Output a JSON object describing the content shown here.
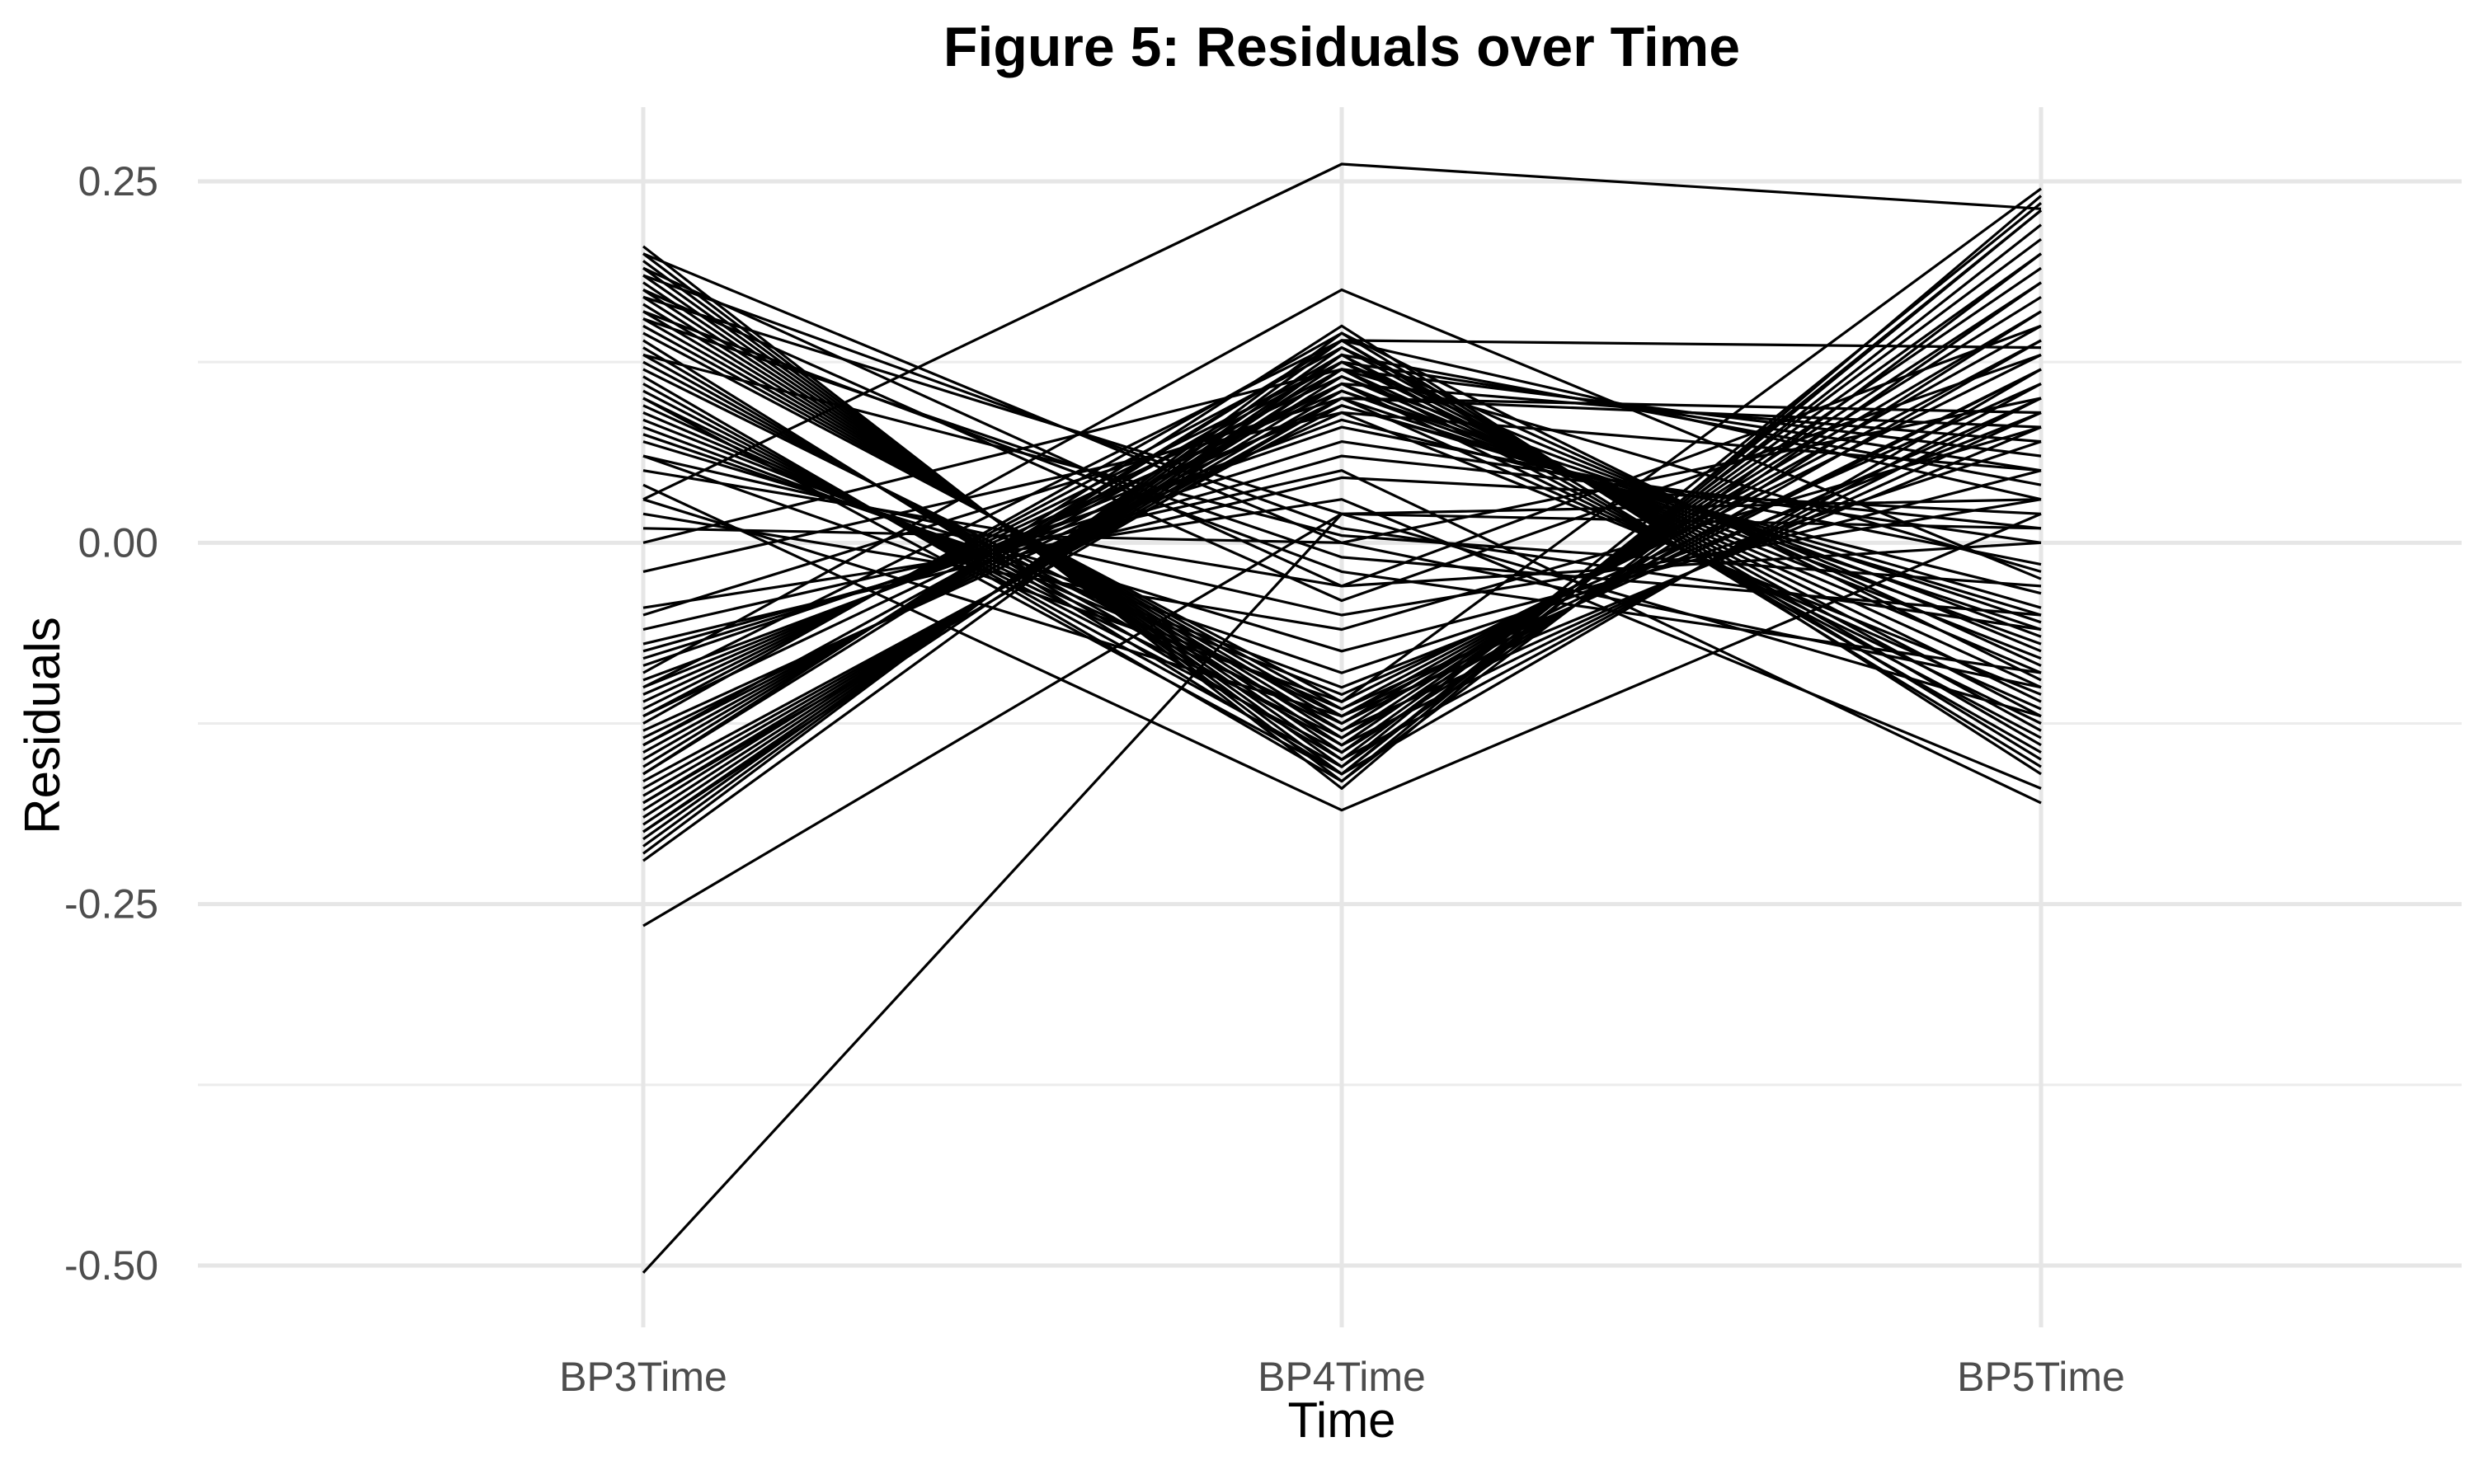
{
  "chart_data": {
    "type": "line",
    "title": "Figure 5: Residuals over Time",
    "xlabel": "Time",
    "ylabel": "Residuals",
    "categories": [
      "BP3Time",
      "BP4Time",
      "BP5Time"
    ],
    "ylim": [
      -0.54,
      0.31
    ],
    "yticks": [
      -0.5,
      -0.25,
      0.0,
      0.25
    ],
    "ytick_labels": [
      "-0.50",
      "-0.25",
      "0.00",
      "0.25"
    ],
    "grid": true,
    "legend": "none",
    "line_color": "#000000",
    "series": [
      {
        "values": [
          -0.505,
          0.02,
          0.01
        ]
      },
      {
        "values": [
          0.03,
          0.262,
          0.231
        ]
      },
      {
        "values": [
          -0.265,
          0.02,
          0.03
        ]
      },
      {
        "values": [
          0.205,
          -0.17,
          0.24
        ]
      },
      {
        "values": [
          0.2,
          -0.165,
          0.23
        ]
      },
      {
        "values": [
          0.195,
          -0.16,
          0.22
        ]
      },
      {
        "values": [
          0.19,
          -0.155,
          0.235
        ]
      },
      {
        "values": [
          0.185,
          -0.15,
          0.21
        ]
      },
      {
        "values": [
          0.18,
          -0.145,
          0.2
        ]
      },
      {
        "values": [
          0.175,
          -0.14,
          0.19
        ]
      },
      {
        "values": [
          0.17,
          -0.135,
          0.18
        ]
      },
      {
        "values": [
          0.165,
          -0.13,
          0.17
        ]
      },
      {
        "values": [
          0.16,
          -0.125,
          0.16
        ]
      },
      {
        "values": [
          0.155,
          -0.12,
          0.15
        ]
      },
      {
        "values": [
          0.15,
          -0.115,
          0.14
        ]
      },
      {
        "values": [
          0.145,
          -0.11,
          0.13
        ]
      },
      {
        "values": [
          0.14,
          -0.16,
          0.12
        ]
      },
      {
        "values": [
          0.135,
          -0.15,
          0.11
        ]
      },
      {
        "values": [
          0.13,
          -0.14,
          0.1
        ]
      },
      {
        "values": [
          0.125,
          -0.13,
          0.09
        ]
      },
      {
        "values": [
          0.12,
          -0.12,
          0.08
        ]
      },
      {
        "values": [
          0.115,
          -0.165,
          0.2
        ]
      },
      {
        "values": [
          0.11,
          -0.155,
          0.18
        ]
      },
      {
        "values": [
          0.105,
          -0.145,
          0.16
        ]
      },
      {
        "values": [
          0.1,
          -0.135,
          0.14
        ]
      },
      {
        "values": [
          0.095,
          -0.125,
          0.12
        ]
      },
      {
        "values": [
          0.09,
          -0.115,
          0.1
        ]
      },
      {
        "values": [
          0.085,
          -0.105,
          0.11
        ]
      },
      {
        "values": [
          0.08,
          -0.1,
          0.09
        ]
      },
      {
        "values": [
          0.075,
          -0.09,
          0.07
        ]
      },
      {
        "values": [
          0.07,
          -0.075,
          0.05
        ]
      },
      {
        "values": [
          0.06,
          -0.05,
          0.03
        ]
      },
      {
        "values": [
          0.05,
          -0.03,
          0.0
        ]
      },
      {
        "values": [
          0.04,
          -0.185,
          0.02
        ]
      },
      {
        "values": [
          0.03,
          -0.12,
          0.12
        ]
      },
      {
        "values": [
          0.02,
          -0.06,
          0.08
        ]
      },
      {
        "values": [
          0.01,
          0.0,
          0.1
        ]
      },
      {
        "values": [
          0.19,
          -0.03,
          0.15
        ]
      },
      {
        "values": [
          0.175,
          -0.04,
          0.13
        ]
      },
      {
        "values": [
          0.2,
          0.0,
          -0.1
        ]
      },
      {
        "values": [
          0.16,
          -0.02,
          -0.09
        ]
      },
      {
        "values": [
          0.185,
          0.01,
          -0.06
        ]
      },
      {
        "values": [
          0.17,
          0.02,
          -0.12
        ]
      },
      {
        "values": [
          0.155,
          -0.01,
          -0.05
        ]
      },
      {
        "values": [
          0.13,
          0.005,
          -0.03
        ]
      },
      {
        "values": [
          -0.215,
          0.145,
          -0.15
        ]
      },
      {
        "values": [
          -0.21,
          0.14,
          -0.14
        ]
      },
      {
        "values": [
          -0.205,
          0.135,
          -0.13
        ]
      },
      {
        "values": [
          -0.2,
          0.13,
          -0.12
        ]
      },
      {
        "values": [
          -0.195,
          0.125,
          -0.11
        ]
      },
      {
        "values": [
          -0.19,
          0.12,
          -0.1
        ]
      },
      {
        "values": [
          -0.185,
          0.115,
          -0.09
        ]
      },
      {
        "values": [
          -0.18,
          0.11,
          -0.08
        ]
      },
      {
        "values": [
          -0.175,
          0.105,
          -0.07
        ]
      },
      {
        "values": [
          -0.17,
          0.1,
          -0.06
        ]
      },
      {
        "values": [
          -0.165,
          0.095,
          -0.05
        ]
      },
      {
        "values": [
          -0.16,
          0.15,
          -0.16
        ]
      },
      {
        "values": [
          -0.155,
          0.14,
          -0.155
        ]
      },
      {
        "values": [
          -0.15,
          0.13,
          -0.145
        ]
      },
      {
        "values": [
          -0.145,
          0.12,
          -0.135
        ]
      },
      {
        "values": [
          -0.14,
          0.11,
          -0.125
        ]
      },
      {
        "values": [
          -0.135,
          0.1,
          -0.115
        ]
      },
      {
        "values": [
          -0.13,
          0.09,
          -0.105
        ]
      },
      {
        "values": [
          -0.125,
          0.145,
          -0.095
        ]
      },
      {
        "values": [
          -0.12,
          0.135,
          -0.085
        ]
      },
      {
        "values": [
          -0.115,
          0.125,
          -0.075
        ]
      },
      {
        "values": [
          -0.11,
          0.115,
          -0.065
        ]
      },
      {
        "values": [
          -0.105,
          0.105,
          -0.055
        ]
      },
      {
        "values": [
          -0.1,
          0.095,
          -0.045
        ]
      },
      {
        "values": [
          -0.095,
          0.085,
          -0.035
        ]
      },
      {
        "values": [
          -0.09,
          0.175,
          -0.025
        ]
      },
      {
        "values": [
          -0.085,
          0.08,
          -0.015
        ]
      },
      {
        "values": [
          -0.08,
          0.07,
          0.0
        ]
      },
      {
        "values": [
          -0.075,
          0.06,
          0.01
        ]
      },
      {
        "values": [
          -0.07,
          0.045,
          0.02
        ]
      },
      {
        "values": [
          -0.22,
          0.13,
          0.04
        ]
      },
      {
        "values": [
          -0.2,
          0.12,
          0.06
        ]
      },
      {
        "values": [
          -0.18,
          0.1,
          0.08
        ]
      },
      {
        "values": [
          -0.16,
          0.14,
          0.03
        ]
      },
      {
        "values": [
          -0.14,
          0.125,
          0.05
        ]
      },
      {
        "values": [
          -0.12,
          0.11,
          0.07
        ]
      },
      {
        "values": [
          -0.1,
          0.14,
          0.135
        ]
      },
      {
        "values": [
          -0.05,
          0.1,
          0.09
        ]
      },
      {
        "values": [
          -0.02,
          0.09,
          0.05
        ]
      },
      {
        "values": [
          0.0,
          0.12,
          -0.02
        ]
      },
      {
        "values": [
          -0.06,
          0.05,
          -0.18
        ]
      },
      {
        "values": [
          -0.045,
          0.03,
          -0.17
        ]
      },
      {
        "values": [
          0.06,
          -0.11,
          0.245
        ]
      },
      {
        "values": [
          0.1,
          -0.16,
          0.23
        ]
      }
    ]
  }
}
